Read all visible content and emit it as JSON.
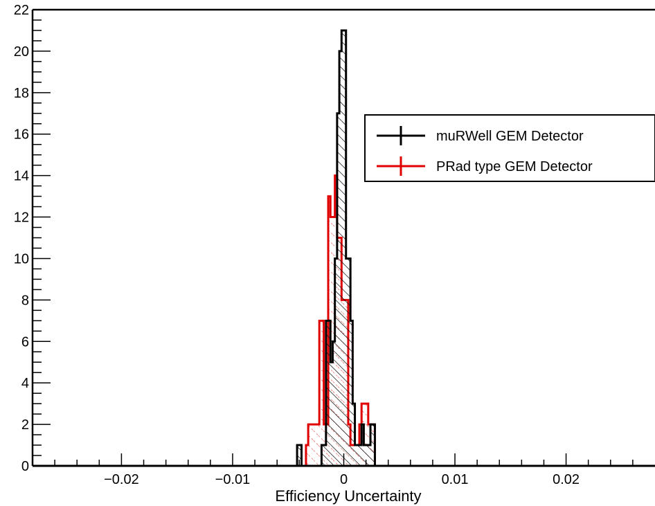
{
  "chart_data": {
    "type": "histogram",
    "title": "",
    "xlabel": "Efficiency Uncertainty",
    "ylabel": "",
    "xlim": [
      -0.028,
      0.028
    ],
    "ylim": [
      0,
      22
    ],
    "grid": false,
    "legend_position": "top-right",
    "x_ticks": [
      {
        "value": -0.02,
        "label": "−0.02"
      },
      {
        "value": -0.01,
        "label": "−0.01"
      },
      {
        "value": 0,
        "label": "0"
      },
      {
        "value": 0.01,
        "label": "0.01"
      },
      {
        "value": 0.02,
        "label": "0.02"
      }
    ],
    "y_ticks": [
      {
        "value": 0,
        "label": "0"
      },
      {
        "value": 2,
        "label": "2"
      },
      {
        "value": 4,
        "label": "4"
      },
      {
        "value": 6,
        "label": "6"
      },
      {
        "value": 8,
        "label": "8"
      },
      {
        "value": 10,
        "label": "10"
      },
      {
        "value": 12,
        "label": "12"
      },
      {
        "value": 14,
        "label": "14"
      },
      {
        "value": 16,
        "label": "16"
      },
      {
        "value": 18,
        "label": "18"
      },
      {
        "value": 20,
        "label": "20"
      },
      {
        "value": 22,
        "label": "22"
      }
    ],
    "series": [
      {
        "name": "PRad type GEM Detector",
        "color": "#e00000",
        "hatch": "sparse-dashed",
        "bins": [
          {
            "x0": -0.0034,
            "x1": -0.0032,
            "y": 1
          },
          {
            "x0": -0.0032,
            "x1": -0.0022,
            "y": 2
          },
          {
            "x0": -0.0022,
            "x1": -0.0018,
            "y": 7
          },
          {
            "x0": -0.0018,
            "x1": -0.0014,
            "y": 2
          },
          {
            "x0": -0.0014,
            "x1": -0.0012,
            "y": 13
          },
          {
            "x0": -0.0012,
            "x1": -0.0008,
            "y": 12
          },
          {
            "x0": -0.0008,
            "x1": -0.0006,
            "y": 14
          },
          {
            "x0": -0.0006,
            "x1": -0.0002,
            "y": 11
          },
          {
            "x0": -0.0002,
            "x1": 0.0004,
            "y": 8
          },
          {
            "x0": 0.0004,
            "x1": 0.0006,
            "y": 2
          },
          {
            "x0": 0.0006,
            "x1": 0.0014,
            "y": 1
          },
          {
            "x0": 0.0014,
            "x1": 0.0016,
            "y": 2
          },
          {
            "x0": 0.0016,
            "x1": 0.0022,
            "y": 3
          },
          {
            "x0": 0.0022,
            "x1": 0.0028,
            "y": 2
          }
        ]
      },
      {
        "name": "muRWell GEM Detector",
        "color": "#000000",
        "hatch": "dense-diagonal",
        "bins": [
          {
            "x0": -0.0042,
            "x1": -0.0038,
            "y": 1
          },
          {
            "x0": -0.0038,
            "x1": -0.002,
            "y": 0
          },
          {
            "x0": -0.002,
            "x1": -0.0016,
            "y": 1
          },
          {
            "x0": -0.0016,
            "x1": -0.0012,
            "y": 7
          },
          {
            "x0": -0.0012,
            "x1": -0.001,
            "y": 5
          },
          {
            "x0": -0.001,
            "x1": -0.0008,
            "y": 6
          },
          {
            "x0": -0.0008,
            "x1": -0.0006,
            "y": 10
          },
          {
            "x0": -0.0006,
            "x1": -0.0004,
            "y": 17
          },
          {
            "x0": -0.0004,
            "x1": -0.0002,
            "y": 20
          },
          {
            "x0": -0.0002,
            "x1": 0.0002,
            "y": 21
          },
          {
            "x0": 0.0002,
            "x1": 0.0006,
            "y": 10
          },
          {
            "x0": 0.0006,
            "x1": 0.0008,
            "y": 7
          },
          {
            "x0": 0.0008,
            "x1": 0.001,
            "y": 3
          },
          {
            "x0": 0.001,
            "x1": 0.0016,
            "y": 1
          },
          {
            "x0": 0.0016,
            "x1": 0.0018,
            "y": 2
          },
          {
            "x0": 0.0018,
            "x1": 0.0024,
            "y": 1
          },
          {
            "x0": 0.0024,
            "x1": 0.0028,
            "y": 2
          }
        ]
      }
    ],
    "legend": [
      {
        "label": "muRWell GEM Detector",
        "color": "#000000"
      },
      {
        "label": "PRad type GEM Detector",
        "color": "#e00000"
      }
    ]
  }
}
